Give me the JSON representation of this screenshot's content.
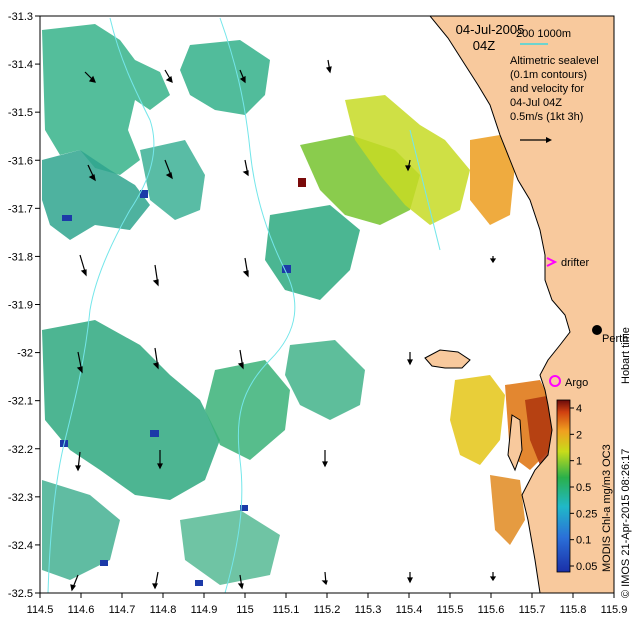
{
  "map": {
    "title_date": "04-Jul-2005",
    "title_time": "04Z",
    "scale_label": "200  1000m",
    "legend_lines": [
      "Altimetric sealevel",
      "(0.1m contours)",
      "and velocity for",
      "04-Jul 04Z",
      "0.5m/s (1kt 3h)"
    ],
    "drifter_label": "drifter",
    "argo_label": "Argo",
    "city_label": "Perth",
    "hobart_label": "Hobart time",
    "credit_label": "MODIS Chl-a mg/m3 OC3",
    "imos_label": "© IMOS 21-Apr-2015 08:26:17",
    "lon_ticks": [
      "114.5",
      "114.6",
      "114.7",
      "114.8",
      "114.9",
      "115",
      "115.1",
      "115.2",
      "115.3",
      "115.4",
      "115.5",
      "115.6",
      "115.7",
      "115.8",
      "115.9"
    ],
    "lat_ticks": [
      "-31.3",
      "-31.4",
      "-31.5",
      "-31.6",
      "-31.7",
      "-31.8",
      "-31.9",
      "-32",
      "-32.1",
      "-32.2",
      "-32.3",
      "-32.4",
      "-32.5"
    ],
    "colorbar_ticks": [
      "4",
      "2",
      "1",
      "0.5",
      "0.25",
      "0.1",
      "0.05"
    ],
    "colors": {
      "land": "#f8c99d",
      "contour": "#3fd8e0",
      "drifter": "#ff00ff",
      "argo": "#ff00ff",
      "bathy": "#74e6ea"
    }
  }
}
